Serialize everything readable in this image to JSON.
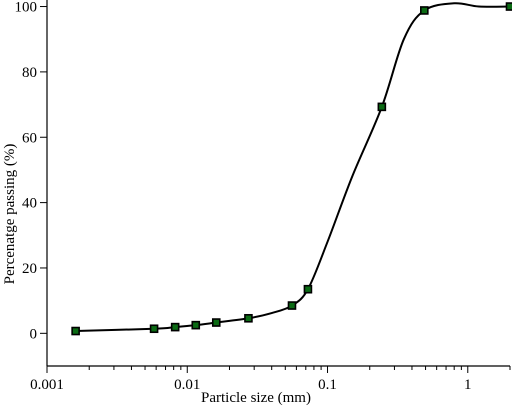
{
  "chart_data": {
    "type": "line",
    "title": "",
    "xlabel": "Particle size (mm)",
    "ylabel": "Percenatge passing (%)",
    "xscale": "log",
    "xlim": [
      0.001,
      2.0
    ],
    "ylim": [
      -10,
      102
    ],
    "grid": false,
    "legend": "none",
    "marker_fill": "#0b6b14",
    "marker_edge": "#000000",
    "line_color": "#000000",
    "xticks": [
      {
        "value": 0.001,
        "label": "0.001"
      },
      {
        "value": 0.01,
        "label": "0.01"
      },
      {
        "value": 0.1,
        "label": "0.1"
      },
      {
        "value": 1,
        "label": "1"
      }
    ],
    "yticks": [
      {
        "value": 0,
        "label": "0"
      },
      {
        "value": 20,
        "label": "20"
      },
      {
        "value": 40,
        "label": "40"
      },
      {
        "value": 60,
        "label": "60"
      },
      {
        "value": 80,
        "label": "80"
      },
      {
        "value": 100,
        "label": "100"
      }
    ],
    "series": [
      {
        "x": [
          0.0016,
          0.0058,
          0.0082,
          0.0115,
          0.0161,
          0.0273,
          0.0558,
          0.0725,
          0.244,
          0.49,
          2.0
        ],
        "y": [
          0.7,
          1.4,
          1.9,
          2.5,
          3.3,
          4.6,
          8.5,
          13.5,
          69.3,
          98.8,
          100.0
        ]
      }
    ],
    "curve_points": {
      "x": [
        0.0016,
        0.0058,
        0.0082,
        0.0115,
        0.0161,
        0.0273,
        0.04,
        0.0558,
        0.0725,
        0.1,
        0.15,
        0.244,
        0.35,
        0.49,
        0.8,
        1.2,
        2.0
      ],
      "y": [
        0.7,
        1.4,
        1.9,
        2.5,
        3.3,
        4.6,
        6.2,
        8.5,
        13.5,
        28.0,
        48.0,
        69.3,
        90.0,
        98.8,
        101.0,
        100.0,
        100.0
      ]
    }
  }
}
